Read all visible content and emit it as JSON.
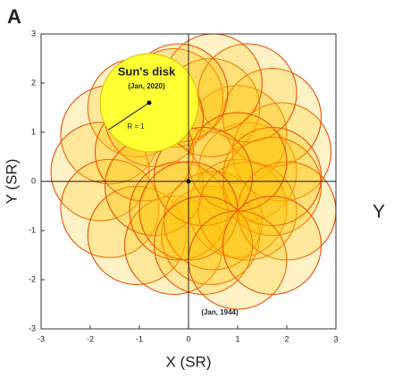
{
  "chart_data": {
    "type": "scatter",
    "panel_label": "A",
    "xlabel": "X (SR)",
    "ylabel": "Y (SR)",
    "side_label": "Y",
    "xlim": [
      -3,
      3
    ],
    "ylim": [
      -3,
      3
    ],
    "xticks": [
      -3,
      -2,
      -1,
      0,
      1,
      2,
      3
    ],
    "yticks": [
      -3,
      -2,
      -1,
      0,
      1,
      2,
      3
    ],
    "color": "#e8500a",
    "fill": "#ffc400",
    "x": [
      1.2,
      1.0,
      0.45,
      -0.3,
      -1.05,
      -1.6,
      -1.8,
      -1.6,
      -1.05,
      -0.3,
      0.45,
      1.0,
      1.9,
      1.7,
      1.2,
      0.5,
      -0.2,
      -0.7,
      -0.9,
      -0.7,
      -0.2,
      0.5,
      1.2,
      1.7,
      2.0,
      1.7,
      1.0,
      0.3,
      0,
      0.3,
      1.0,
      1.7
    ],
    "y": [
      0.2,
      0.95,
      1.5,
      1.7,
      1.5,
      0.95,
      0.2,
      -0.55,
      -1.1,
      -1.3,
      -1.1,
      -0.55,
      0.6,
      1.3,
      1.8,
      2.0,
      1.8,
      1.3,
      0.6,
      -0.1,
      -0.6,
      -0.8,
      -0.6,
      -0.1,
      -0.6,
      0.1,
      0.4,
      0.1,
      -0.6,
      -1.3,
      -1.6,
      -1.3
    ],
    "sun_disk": {
      "label": "Sun's disk",
      "date": "(Jan, 2020)",
      "radius_label": "R = 1",
      "x": -0.8,
      "y": 1.6,
      "radius": 1,
      "color": "#ffff33"
    },
    "end_label": "(Jan, 1944)"
  }
}
